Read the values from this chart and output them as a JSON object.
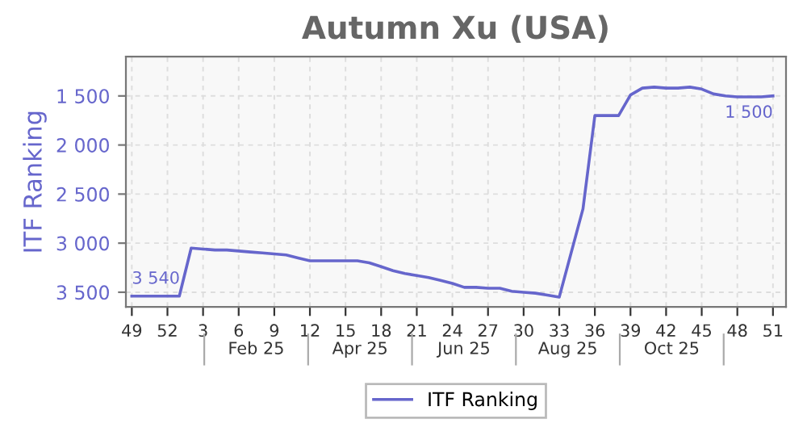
{
  "chart_data": {
    "type": "line",
    "title": "Autumn Xu (USA)",
    "ylabel": "ITF Ranking",
    "categories": [
      "49",
      null,
      null,
      "52",
      null,
      null,
      "3",
      null,
      null,
      "6",
      null,
      null,
      "9",
      null,
      null,
      "12",
      null,
      null,
      "15",
      null,
      null,
      "18",
      null,
      null,
      "21",
      null,
      null,
      "24",
      null,
      null,
      "27",
      null,
      null,
      "30",
      null,
      null,
      "33",
      null,
      null,
      "36",
      null,
      null,
      "39",
      null,
      null,
      "42",
      null,
      null,
      "45",
      null,
      null,
      "48",
      null,
      null,
      "51"
    ],
    "series": [
      {
        "name": "ITF Ranking",
        "color": "#6666cc",
        "values": [
          3540,
          3540,
          3540,
          3540,
          3540,
          3050,
          3060,
          3070,
          3070,
          3080,
          3090,
          3100,
          3110,
          3120,
          3150,
          3180,
          3180,
          3180,
          3180,
          3180,
          3200,
          3240,
          3280,
          3310,
          3330,
          3350,
          3380,
          3410,
          3450,
          3450,
          3460,
          3460,
          3490,
          3500,
          3510,
          3530,
          3550,
          3100,
          2650,
          1700,
          1700,
          1700,
          1490,
          1420,
          1410,
          1420,
          1420,
          1410,
          1430,
          1480,
          1500,
          1510,
          1510,
          1510,
          1500
        ]
      }
    ],
    "ylim": [
      3650,
      1100
    ],
    "yticks": [
      {
        "value": 1500,
        "label": "1 500"
      },
      {
        "value": 2000,
        "label": "2 000"
      },
      {
        "value": 2500,
        "label": "2 500"
      },
      {
        "value": 3000,
        "label": "3 000"
      },
      {
        "value": 3500,
        "label": "3 500"
      }
    ],
    "annotations": [
      {
        "text": "3 540",
        "x": "49",
        "y": 3540
      },
      {
        "text": "1 500",
        "x": "51",
        "y": 1500
      },
      "Feb 25",
      "Apr 25",
      "Jun 25",
      "Aug 25",
      "Oct 25"
    ],
    "grid": true,
    "legend": "bottom",
    "line_style": "solid",
    "marker": "none"
  }
}
